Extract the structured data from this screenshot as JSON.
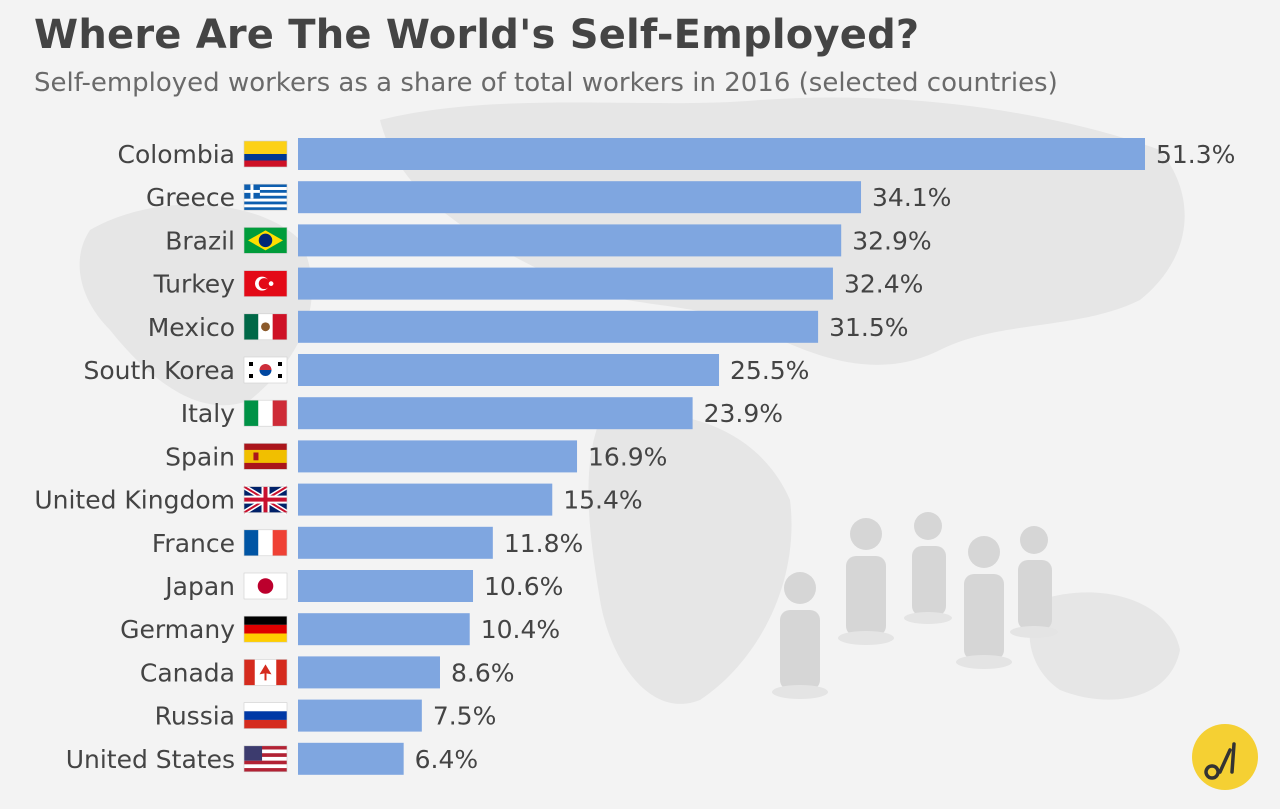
{
  "title": "Where Are The World's Self-Employed?",
  "subtitle": "Self-employed workers as a share of total workers in 2016 (selected countries)",
  "colors": {
    "bar": "#7fa6e0",
    "text": "#444444",
    "value_text": "#444444",
    "logo": "#f5d033"
  },
  "chart_data": {
    "type": "bar",
    "orientation": "horizontal",
    "title": "Where Are The World's Self-Employed?",
    "subtitle": "Self-employed workers as a share of total workers in 2016 (selected countries)",
    "xlabel": "",
    "ylabel": "",
    "value_suffix": "%",
    "xlim": [
      0,
      51.3
    ],
    "grid": false,
    "categories": [
      "Colombia",
      "Greece",
      "Brazil",
      "Turkey",
      "Mexico",
      "South Korea",
      "Italy",
      "Spain",
      "United Kingdom",
      "France",
      "Japan",
      "Germany",
      "Canada",
      "Russia",
      "United States"
    ],
    "values": [
      51.3,
      34.1,
      32.9,
      32.4,
      31.5,
      25.5,
      23.9,
      16.9,
      15.4,
      11.8,
      10.6,
      10.4,
      8.6,
      7.5,
      6.4
    ],
    "value_labels": [
      "51.3%",
      "34.1%",
      "32.9%",
      "32.4%",
      "31.5%",
      "25.5%",
      "23.9%",
      "16.9%",
      "15.4%",
      "11.8%",
      "10.6%",
      "10.4%",
      "8.6%",
      "7.5%",
      "6.4%"
    ],
    "flags": [
      "colombia-flag",
      "greece-flag",
      "brazil-flag",
      "turkey-flag",
      "mexico-flag",
      "south-korea-flag",
      "italy-flag",
      "spain-flag",
      "united-kingdom-flag",
      "france-flag",
      "japan-flag",
      "germany-flag",
      "canada-flag",
      "russia-flag",
      "united-states-flag"
    ]
  }
}
